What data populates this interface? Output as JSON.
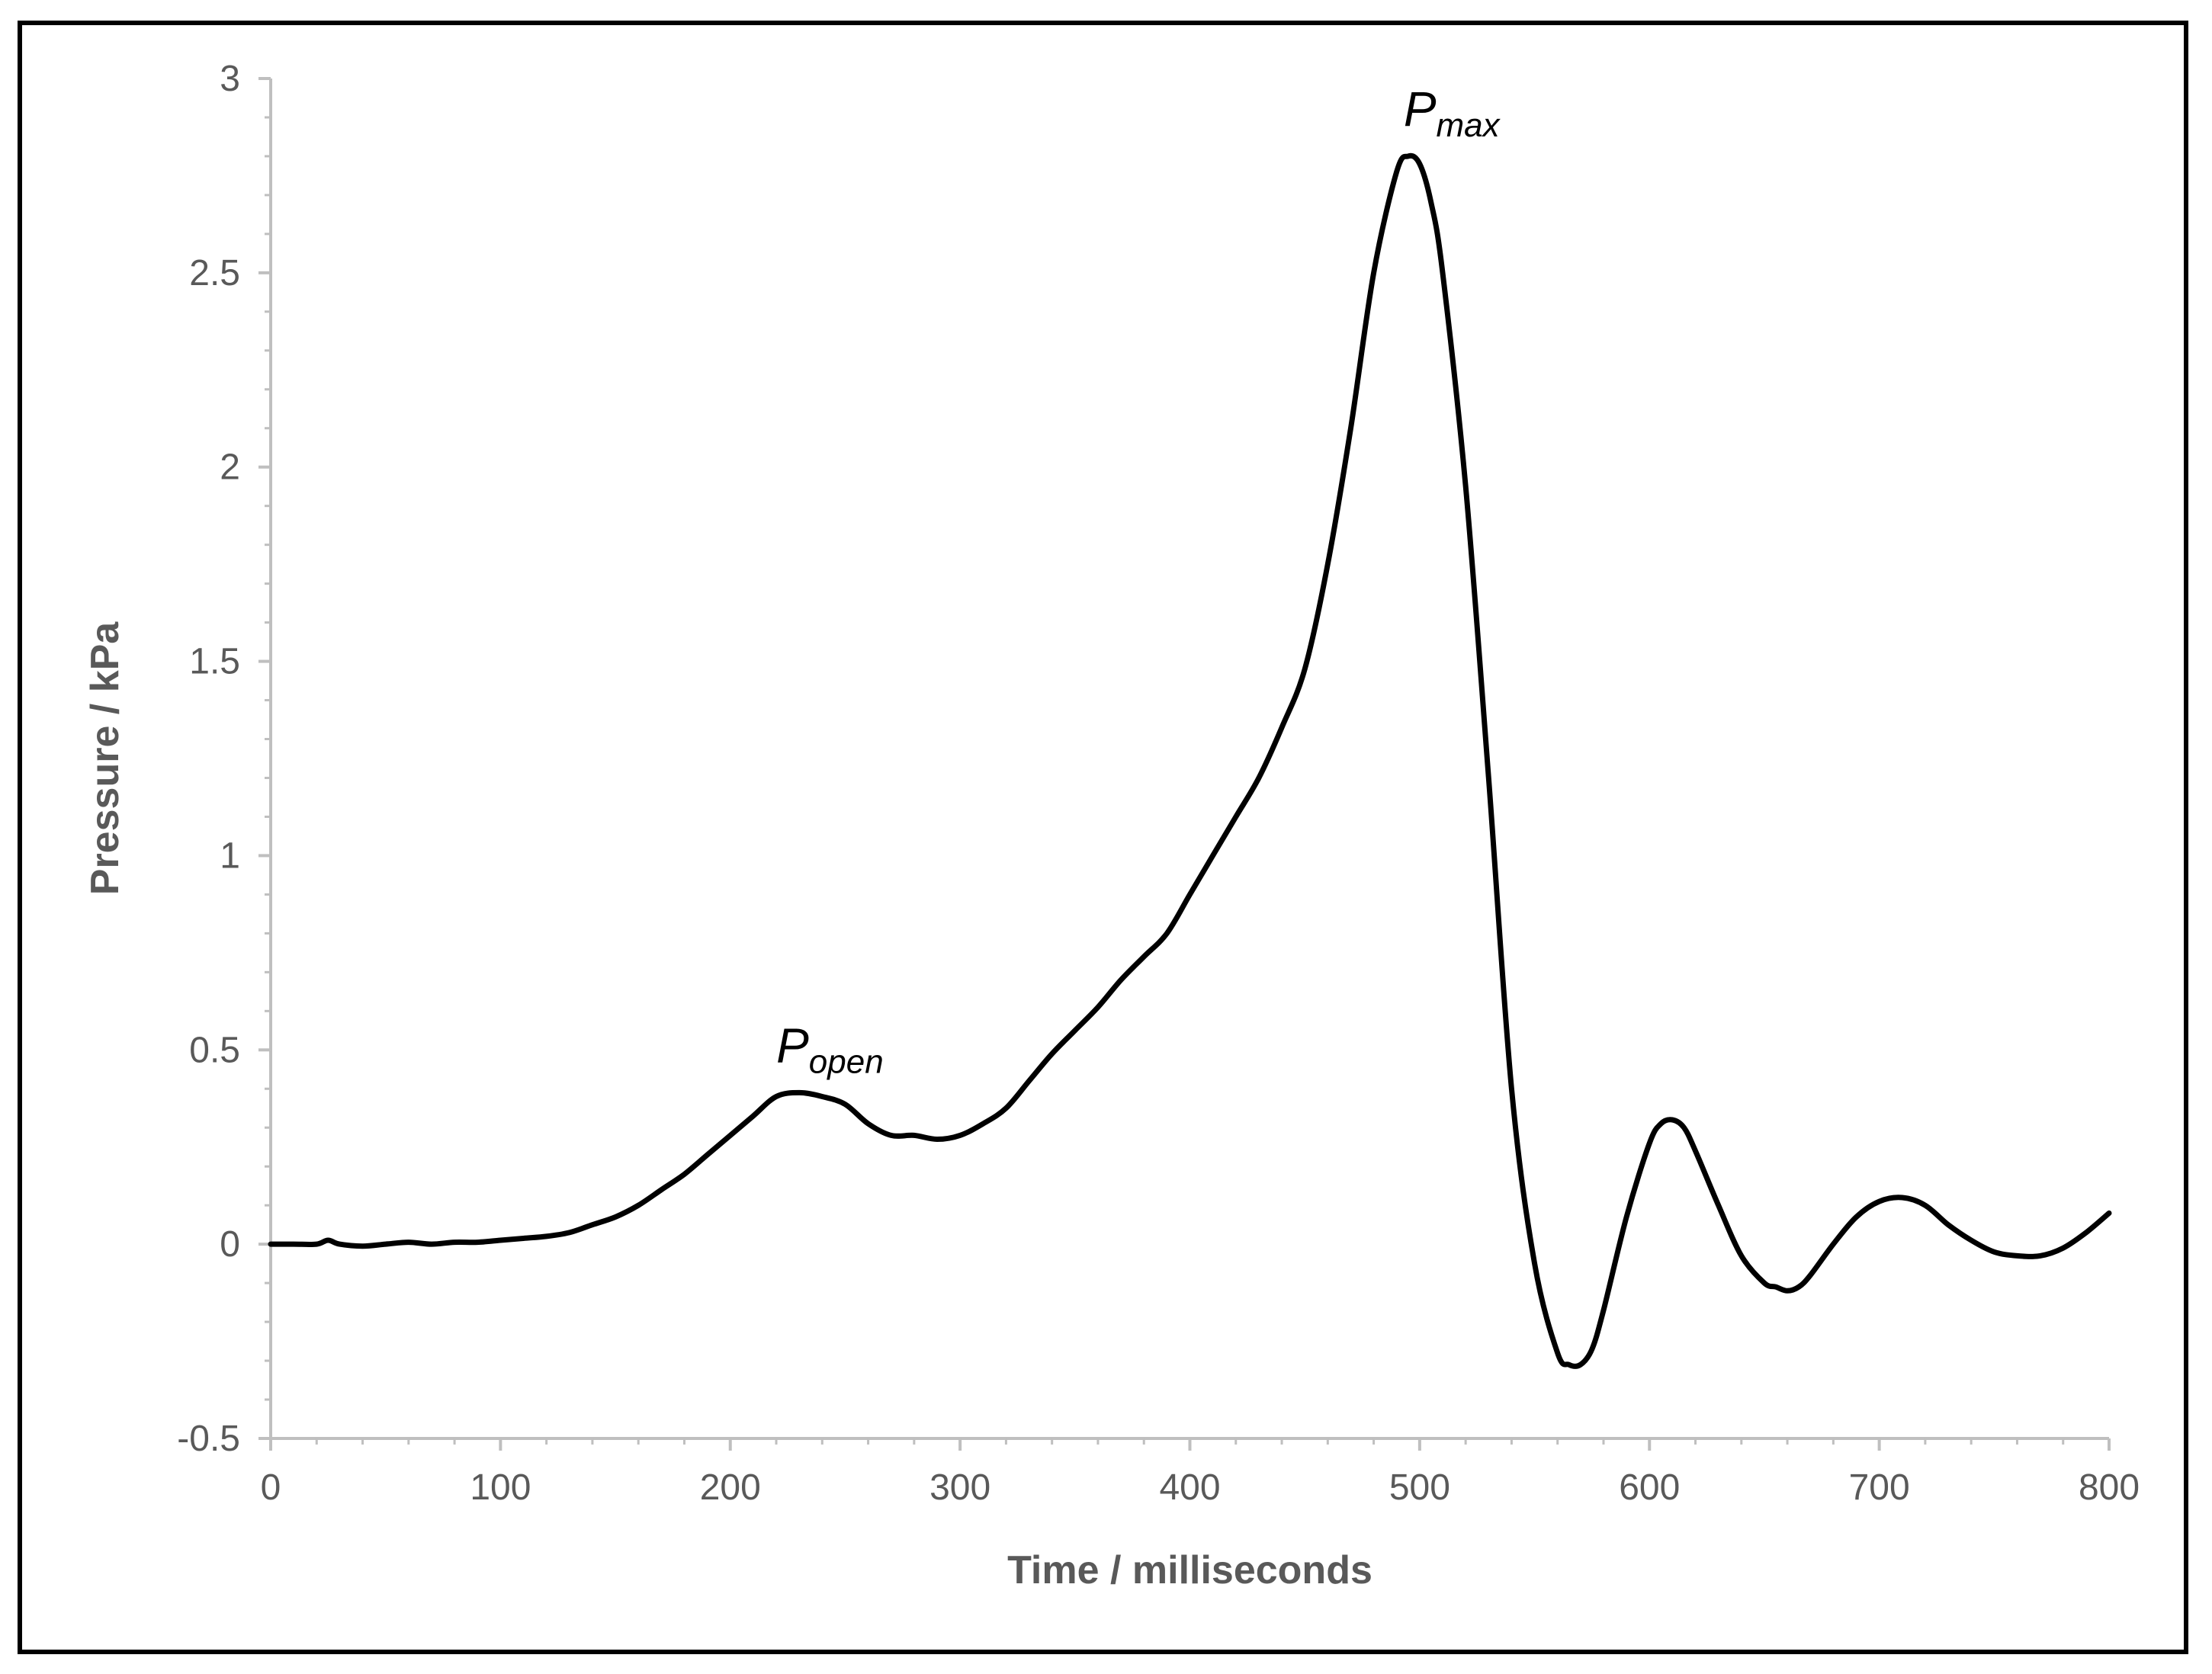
{
  "chart_data": {
    "type": "line",
    "title": "",
    "xlabel": "Time / milliseconds",
    "ylabel": "Pressure / kPa",
    "xlim": [
      0,
      800
    ],
    "ylim": [
      -0.5,
      3
    ],
    "x_ticks": [
      "0",
      "100",
      "200",
      "300",
      "400",
      "500",
      "600",
      "700",
      "800"
    ],
    "y_ticks": [
      "-0.5",
      "0",
      "0.5",
      "1",
      "1.5",
      "2",
      "2.5",
      "3"
    ],
    "grid": false,
    "legend": "none",
    "annotations": [
      {
        "main": "P",
        "sub": "open",
        "x": 225,
        "y": 0.39
      },
      {
        "main": "P",
        "sub": "max",
        "x": 498,
        "y": 2.8
      }
    ],
    "series": [
      {
        "color": "#000000",
        "x": [
          0,
          10,
          20,
          25,
          30,
          40,
          50,
          60,
          70,
          80,
          90,
          100,
          110,
          120,
          130,
          140,
          150,
          160,
          170,
          180,
          190,
          200,
          210,
          220,
          230,
          240,
          250,
          260,
          270,
          280,
          290,
          300,
          310,
          320,
          330,
          340,
          350,
          360,
          370,
          380,
          390,
          400,
          410,
          420,
          430,
          440,
          450,
          460,
          470,
          480,
          490,
          495,
          500,
          505,
          510,
          520,
          530,
          540,
          550,
          560,
          565,
          570,
          575,
          580,
          590,
          600,
          605,
          610,
          615,
          620,
          630,
          640,
          650,
          655,
          660,
          665,
          670,
          680,
          690,
          700,
          710,
          720,
          730,
          740,
          750,
          760,
          770,
          780,
          790,
          800
        ],
        "y": [
          0.0,
          0.0,
          0.0,
          0.01,
          0.0,
          -0.005,
          0.0,
          0.005,
          0.0,
          0.005,
          0.005,
          0.01,
          0.015,
          0.02,
          0.03,
          0.05,
          0.07,
          0.1,
          0.14,
          0.18,
          0.23,
          0.28,
          0.33,
          0.38,
          0.39,
          0.38,
          0.36,
          0.31,
          0.28,
          0.28,
          0.27,
          0.28,
          0.31,
          0.35,
          0.42,
          0.49,
          0.55,
          0.61,
          0.68,
          0.74,
          0.8,
          0.9,
          1.0,
          1.1,
          1.2,
          1.33,
          1.48,
          1.75,
          2.1,
          2.5,
          2.76,
          2.8,
          2.78,
          2.68,
          2.5,
          1.95,
          1.2,
          0.4,
          -0.05,
          -0.28,
          -0.31,
          -0.31,
          -0.27,
          -0.17,
          0.07,
          0.26,
          0.31,
          0.32,
          0.3,
          0.24,
          0.1,
          -0.03,
          -0.1,
          -0.11,
          -0.12,
          -0.11,
          -0.08,
          0.0,
          0.07,
          0.11,
          0.12,
          0.1,
          0.05,
          0.01,
          -0.02,
          -0.03,
          -0.03,
          -0.01,
          0.03,
          0.08
        ]
      }
    ]
  }
}
